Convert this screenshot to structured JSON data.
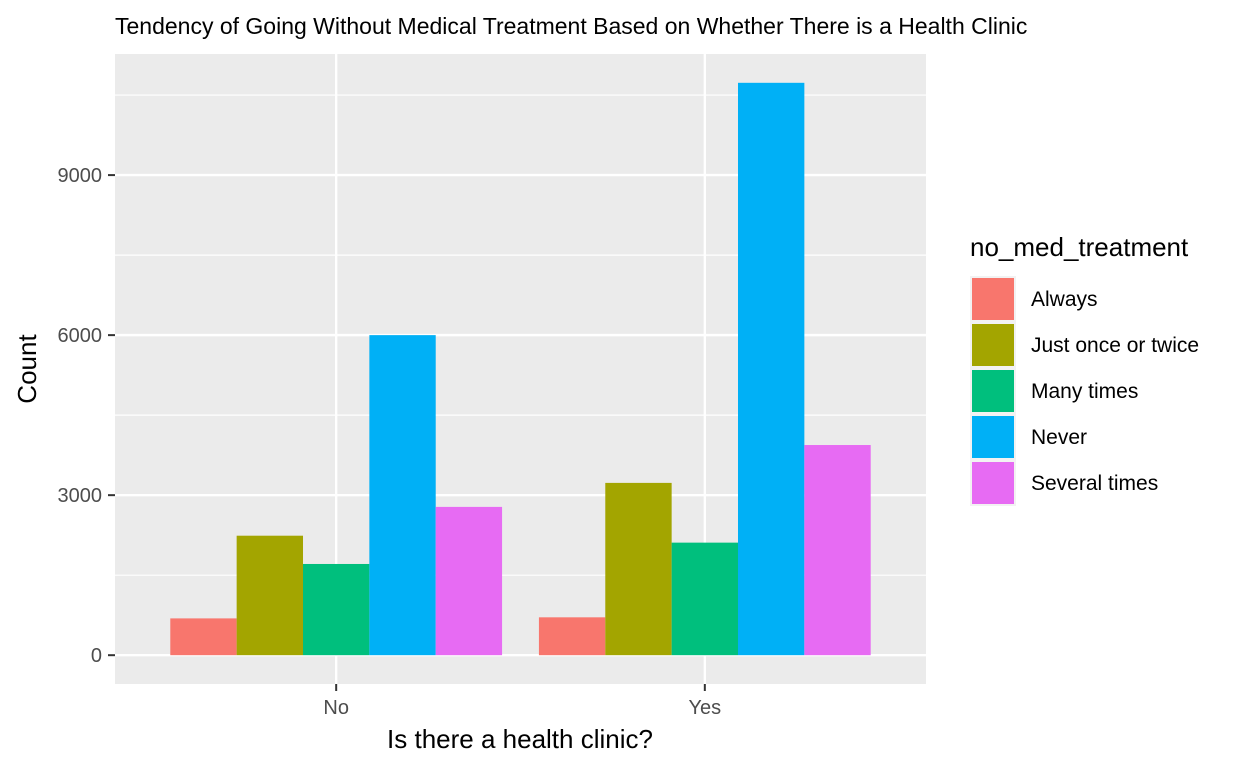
{
  "chart_data": {
    "type": "bar",
    "title": "Tendency of Going Without Medical Treatment Based on Whether There is a Health Clinic",
    "xlabel": "Is there a health clinic?",
    "ylabel": "Count",
    "categories": [
      "No",
      "Yes"
    ],
    "series": [
      {
        "name": "Always",
        "values": [
          690,
          710
        ],
        "color": "#F8766D"
      },
      {
        "name": "Just once or twice",
        "values": [
          2240,
          3230
        ],
        "color": "#A3A500"
      },
      {
        "name": "Many times",
        "values": [
          1710,
          2110
        ],
        "color": "#00BF7D"
      },
      {
        "name": "Never",
        "values": [
          6000,
          10730
        ],
        "color": "#00B0F6"
      },
      {
        "name": "Several times",
        "values": [
          2780,
          3940
        ],
        "color": "#E76BF3"
      }
    ],
    "ylim": [
      -540,
      11270
    ],
    "yticks": [
      0,
      3000,
      6000,
      9000
    ],
    "ytick_labels": [
      "0",
      "3000",
      "6000",
      "9000"
    ],
    "legend_title": "no_med_treatment",
    "legend_position": "right",
    "grid": true,
    "panel_color": "#EBEBEB"
  }
}
